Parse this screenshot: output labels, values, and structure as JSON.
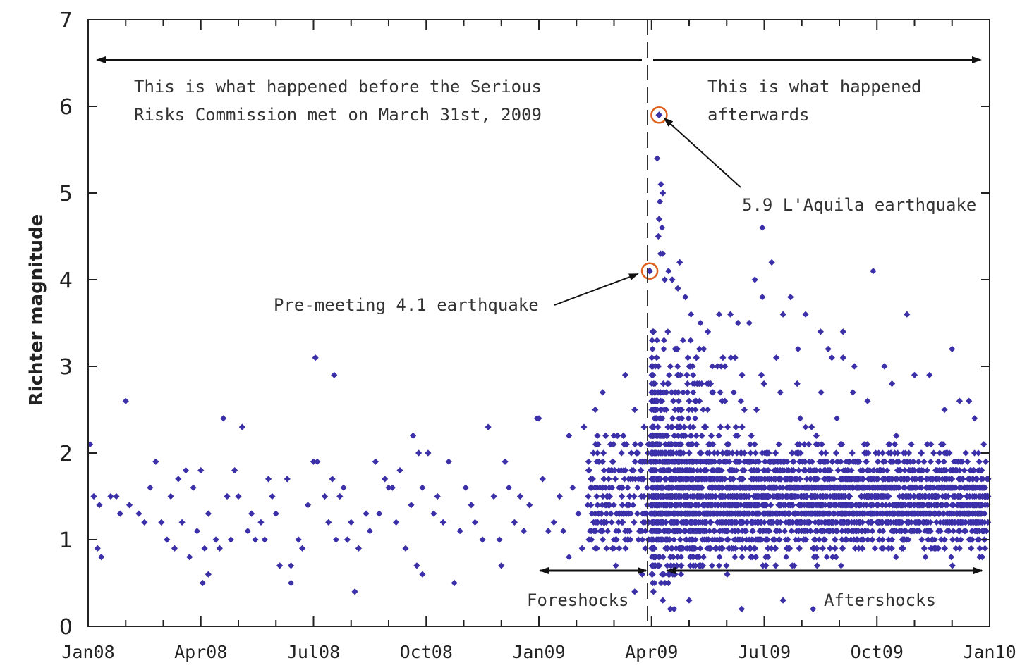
{
  "chart_data": {
    "type": "scatter",
    "title": "",
    "xlabel": "",
    "ylabel": "Richter magnitude",
    "ylim": [
      0,
      7
    ],
    "xlim_months": [
      0,
      24
    ],
    "yticks": [
      "0",
      "1",
      "2",
      "3",
      "4",
      "5",
      "6",
      "7"
    ],
    "xticks": [
      {
        "label": "Jan08",
        "month": 0
      },
      {
        "label": "Apr08",
        "month": 3
      },
      {
        "label": "Jul08",
        "month": 6
      },
      {
        "label": "Oct08",
        "month": 9
      },
      {
        "label": "Jan09",
        "month": 12
      },
      {
        "label": "Apr09",
        "month": 15
      },
      {
        "label": "Jul09",
        "month": 18
      },
      {
        "label": "Oct09",
        "month": 21
      },
      {
        "label": "Jan10",
        "month": 24
      }
    ],
    "meeting_month": 15,
    "marker_color": "#3b30a8",
    "highlight_color": "#e06020",
    "annotations": {
      "before_line1": "This is what happened before the Serious",
      "before_line2": "Risks Commission met on March 31st, 2009",
      "after_line1": "This is what happened",
      "after_line2": "afterwards",
      "main_quake": "5.9 L'Aquila earthquake",
      "pre_quake": "Pre-meeting 4.1 earthquake",
      "foreshocks": "Foreshocks",
      "aftershocks": "Aftershocks"
    },
    "highlighted_events": [
      {
        "name": "Pre-meeting 4.1 earthquake",
        "month": 14.95,
        "magnitude": 4.1
      },
      {
        "name": "5.9 L'Aquila earthquake",
        "month": 15.2,
        "magnitude": 5.9
      }
    ],
    "series": [
      {
        "name": "earthquakes",
        "points": [
          [
            0.05,
            2.1
          ],
          [
            0.15,
            1.5
          ],
          [
            0.25,
            0.9
          ],
          [
            0.3,
            1.4
          ],
          [
            0.35,
            0.8
          ],
          [
            0.6,
            1.5
          ],
          [
            0.75,
            1.5
          ],
          [
            0.85,
            1.3
          ],
          [
            1.0,
            2.6
          ],
          [
            1.1,
            1.4
          ],
          [
            1.35,
            1.3
          ],
          [
            1.5,
            1.2
          ],
          [
            1.65,
            1.6
          ],
          [
            1.8,
            1.9
          ],
          [
            1.95,
            1.2
          ],
          [
            2.1,
            1.0
          ],
          [
            2.2,
            1.5
          ],
          [
            2.3,
            0.9
          ],
          [
            2.4,
            1.7
          ],
          [
            2.5,
            1.2
          ],
          [
            2.6,
            1.8
          ],
          [
            2.7,
            0.8
          ],
          [
            2.8,
            1.6
          ],
          [
            2.9,
            1.1
          ],
          [
            3.0,
            1.8
          ],
          [
            3.05,
            0.5
          ],
          [
            3.1,
            0.9
          ],
          [
            3.2,
            1.3
          ],
          [
            3.4,
            1.0
          ],
          [
            3.5,
            0.9
          ],
          [
            3.6,
            2.4
          ],
          [
            3.7,
            1.5
          ],
          [
            3.8,
            1.0
          ],
          [
            3.9,
            1.8
          ],
          [
            4.0,
            1.5
          ],
          [
            4.1,
            2.3
          ],
          [
            4.25,
            1.1
          ],
          [
            4.35,
            1.3
          ],
          [
            4.45,
            1.0
          ],
          [
            4.6,
            1.2
          ],
          [
            4.7,
            1.0
          ],
          [
            4.8,
            1.7
          ],
          [
            4.9,
            1.5
          ],
          [
            5.0,
            1.3
          ],
          [
            5.1,
            0.7
          ],
          [
            5.3,
            1.7
          ],
          [
            5.4,
            0.7
          ],
          [
            5.6,
            1.0
          ],
          [
            5.7,
            0.9
          ],
          [
            5.85,
            1.4
          ],
          [
            6.0,
            1.9
          ],
          [
            6.1,
            1.9
          ],
          [
            6.3,
            1.5
          ],
          [
            6.4,
            1.2
          ],
          [
            6.5,
            1.7
          ],
          [
            6.6,
            1.0
          ],
          [
            6.7,
            1.5
          ],
          [
            6.8,
            1.6
          ],
          [
            6.9,
            1.0
          ],
          [
            7.0,
            1.2
          ],
          [
            7.2,
            0.9
          ],
          [
            7.4,
            1.3
          ],
          [
            7.5,
            1.1
          ],
          [
            7.65,
            1.9
          ],
          [
            7.75,
            1.3
          ],
          [
            7.9,
            1.7
          ],
          [
            8.0,
            1.6
          ],
          [
            8.1,
            1.6
          ],
          [
            8.2,
            1.2
          ],
          [
            8.3,
            1.8
          ],
          [
            8.45,
            0.9
          ],
          [
            8.6,
            1.4
          ],
          [
            8.75,
            0.7
          ],
          [
            8.9,
            1.6
          ],
          [
            9.05,
            2.0
          ],
          [
            9.2,
            1.3
          ],
          [
            9.3,
            1.5
          ],
          [
            9.45,
            1.2
          ],
          [
            9.6,
            1.9
          ],
          [
            9.75,
            0.5
          ],
          [
            9.9,
            1.1
          ],
          [
            10.05,
            1.6
          ],
          [
            10.2,
            1.4
          ],
          [
            10.3,
            1.2
          ],
          [
            10.5,
            1.0
          ],
          [
            10.65,
            2.3
          ],
          [
            10.8,
            1.5
          ],
          [
            10.95,
            1.0
          ],
          [
            11.1,
            1.9
          ],
          [
            11.2,
            1.6
          ],
          [
            11.35,
            1.2
          ],
          [
            11.5,
            1.5
          ],
          [
            11.6,
            1.1
          ],
          [
            11.75,
            1.4
          ],
          [
            12.0,
            2.4
          ],
          [
            12.1,
            1.7
          ],
          [
            12.25,
            1.1
          ],
          [
            12.4,
            1.2
          ],
          [
            12.55,
            1.5
          ],
          [
            12.65,
            1.1
          ],
          [
            12.8,
            0.8
          ],
          [
            12.9,
            1.6
          ],
          [
            13.05,
            1.3
          ],
          [
            13.15,
            0.9
          ],
          [
            13.3,
            1.4
          ],
          [
            13.4,
            1.0
          ],
          [
            13.55,
            1.6
          ],
          [
            13.7,
            1.9
          ],
          [
            13.8,
            1.3
          ],
          [
            13.95,
            1.6
          ],
          [
            14.05,
            0.7
          ],
          [
            14.2,
            2.0
          ],
          [
            14.35,
            1.4
          ],
          [
            14.5,
            1.7
          ],
          [
            14.65,
            1.0
          ],
          [
            14.8,
            1.5
          ],
          [
            6.05,
            3.1
          ],
          [
            6.55,
            2.9
          ],
          [
            8.8,
            2.0
          ],
          [
            8.65,
            2.2
          ],
          [
            11.95,
            2.4
          ],
          [
            13.5,
            2.5
          ],
          [
            13.7,
            2.7
          ],
          [
            14.3,
            2.9
          ],
          [
            14.55,
            2.5
          ],
          [
            14.8,
            2.3
          ],
          [
            14.9,
            2.0
          ],
          [
            13.2,
            2.3
          ],
          [
            12.8,
            2.2
          ],
          [
            3.2,
            0.6
          ],
          [
            5.4,
            0.5
          ],
          [
            7.1,
            0.4
          ],
          [
            8.9,
            0.6
          ],
          [
            11.0,
            0.7
          ],
          [
            14.55,
            0.4
          ],
          [
            14.75,
            0.6
          ],
          [
            15.05,
            0.4
          ],
          [
            15.08,
            0.5
          ],
          [
            15.3,
            0.3
          ],
          [
            15.5,
            0.2
          ],
          [
            15.6,
            0.2
          ],
          [
            16.0,
            0.3
          ],
          [
            17.4,
            0.2
          ],
          [
            18.5,
            0.3
          ],
          [
            19.3,
            0.2
          ],
          [
            15.15,
            5.4
          ],
          [
            15.25,
            5.1
          ],
          [
            15.22,
            4.9
          ],
          [
            15.3,
            5.0
          ],
          [
            15.2,
            4.7
          ],
          [
            15.28,
            4.6
          ],
          [
            15.18,
            4.5
          ],
          [
            15.3,
            4.3
          ],
          [
            15.24,
            4.3
          ],
          [
            15.45,
            4.1
          ],
          [
            15.35,
            4.0
          ],
          [
            15.55,
            4.0
          ],
          [
            15.75,
            4.2
          ],
          [
            15.7,
            3.9
          ],
          [
            15.9,
            3.8
          ],
          [
            16.05,
            3.6
          ],
          [
            16.3,
            3.5
          ],
          [
            16.5,
            3.4
          ],
          [
            16.8,
            3.6
          ],
          [
            17.1,
            3.6
          ],
          [
            17.3,
            3.5
          ],
          [
            17.6,
            3.5
          ],
          [
            17.75,
            4.0
          ],
          [
            17.95,
            3.8
          ],
          [
            18.2,
            4.2
          ],
          [
            17.95,
            4.6
          ],
          [
            18.5,
            3.6
          ],
          [
            18.7,
            3.8
          ],
          [
            18.9,
            3.2
          ],
          [
            19.1,
            3.6
          ],
          [
            19.5,
            3.4
          ],
          [
            19.8,
            3.1
          ],
          [
            20.1,
            3.1
          ],
          [
            20.4,
            3.0
          ],
          [
            20.9,
            4.1
          ],
          [
            20.75,
            2.6
          ],
          [
            21.2,
            3.0
          ],
          [
            21.4,
            2.8
          ],
          [
            21.8,
            3.6
          ],
          [
            22.0,
            2.9
          ],
          [
            22.4,
            2.9
          ],
          [
            22.8,
            2.5
          ],
          [
            23.0,
            3.2
          ],
          [
            23.2,
            2.6
          ],
          [
            23.45,
            2.6
          ],
          [
            23.6,
            2.4
          ],
          [
            23.7,
            2.0
          ],
          [
            20.1,
            3.4
          ]
        ]
      }
    ]
  }
}
